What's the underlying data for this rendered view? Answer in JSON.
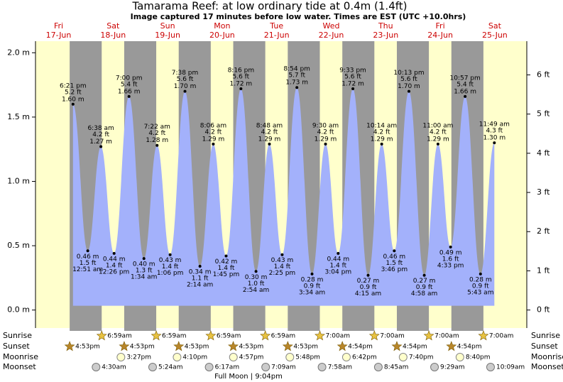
{
  "chart_data": {
    "type": "tide",
    "title": "Tamarama Reef: at low  ordinary tide at 0.4m (1.4ft)",
    "subtitle": "Image captured 17 minutes before low water. Times are EST (UTC +10.0hrs)",
    "ylim": [
      -0.14,
      2.09
    ],
    "yticks": [
      {
        "value": 0,
        "label": "0.0 m"
      },
      {
        "value": 0.5,
        "label": "0.5 m"
      },
      {
        "value": 1,
        "label": "1.0 m"
      },
      {
        "value": 1.5,
        "label": "1.5 m"
      },
      {
        "value": 2,
        "label": "2.0 m"
      }
    ],
    "y2lim": [
      -0.46,
      6.86
    ],
    "y2ticks": [
      {
        "value": 0,
        "label": "0 ft"
      },
      {
        "value": 1,
        "label": "1 ft"
      },
      {
        "value": 2,
        "label": "2 ft"
      },
      {
        "value": 3,
        "label": "3 ft"
      },
      {
        "value": 4,
        "label": "4 ft"
      },
      {
        "value": 5,
        "label": "5 ft"
      },
      {
        "value": 6,
        "label": "6 ft"
      }
    ],
    "colors": {
      "day": "#ffffcc",
      "night": "#999999",
      "water": "#a3b1fb",
      "date": "#cc0000"
    },
    "row_labels": {
      "sunrise": "Sunrise",
      "sunset": "Sunset",
      "moonrise": "Moonrise",
      "moonset": "Moonset"
    },
    "days": [
      {
        "weekday": "Fri",
        "date": "17-Jun",
        "sunset": "4:53pm",
        "tides": [
          {
            "time": "6:21 pm",
            "ft": "5.2 ft",
            "m": 1.6,
            "m_label": "1.60 m"
          }
        ]
      },
      {
        "weekday": "Sat",
        "date": "18-Jun",
        "sunrise": "6:59am",
        "sunset": "4:53pm",
        "moonrise": "3:27pm",
        "moonset": "4:30am",
        "tides": [
          {
            "time": "12:51 am",
            "ft": "1.5 ft",
            "m": 0.46,
            "m_label": "0.46 m"
          },
          {
            "time": "6:38 am",
            "ft": "4.2 ft",
            "m": 1.27,
            "m_label": "1.27 m"
          },
          {
            "time": "12:26 pm",
            "ft": "1.4 ft",
            "m": 0.44,
            "m_label": "0.44 m"
          },
          {
            "time": "7:00 pm",
            "ft": "5.4 ft",
            "m": 1.66,
            "m_label": "1.66 m"
          }
        ]
      },
      {
        "weekday": "Sun",
        "date": "19-Jun",
        "sunrise": "6:59am",
        "sunset": "4:53pm",
        "moonrise": "4:10pm",
        "moonset": "5:24am",
        "tides": [
          {
            "time": "1:34 am",
            "ft": "1.3 ft",
            "m": 0.4,
            "m_label": "0.40 m"
          },
          {
            "time": "7:22 am",
            "ft": "4.2 ft",
            "m": 1.28,
            "m_label": "1.28 m"
          },
          {
            "time": "1:06 pm",
            "ft": "1.4 ft",
            "m": 0.43,
            "m_label": "0.43 m"
          },
          {
            "time": "7:38 pm",
            "ft": "5.6 ft",
            "m": 1.7,
            "m_label": "1.70 m"
          }
        ]
      },
      {
        "weekday": "Mon",
        "date": "20-Jun",
        "sunrise": "6:59am",
        "sunset": "4:53pm",
        "moonrise": "4:57pm",
        "moonset": "6:17am",
        "tides": [
          {
            "time": "2:14 am",
            "ft": "1.1 ft",
            "m": 0.34,
            "m_label": "0.34 m"
          },
          {
            "time": "8:06 am",
            "ft": "4.2 ft",
            "m": 1.29,
            "m_label": "1.29 m"
          },
          {
            "time": "1:45 pm",
            "ft": "1.4 ft",
            "m": 0.42,
            "m_label": "0.42 m"
          },
          {
            "time": "8:16 pm",
            "ft": "5.6 ft",
            "m": 1.72,
            "m_label": "1.72 m"
          }
        ]
      },
      {
        "weekday": "Tue",
        "date": "21-Jun",
        "sunrise": "6:59am",
        "sunset": "4:53pm",
        "moonrise": "5:48pm",
        "moonset": "7:09am",
        "tides": [
          {
            "time": "2:54 am",
            "ft": "1.0 ft",
            "m": 0.3,
            "m_label": "0.30 m"
          },
          {
            "time": "8:48 am",
            "ft": "4.2 ft",
            "m": 1.29,
            "m_label": "1.29 m"
          },
          {
            "time": "2:25 pm",
            "ft": "1.4 ft",
            "m": 0.43,
            "m_label": "0.43 m"
          },
          {
            "time": "8:54 pm",
            "ft": "5.7 ft",
            "m": 1.73,
            "m_label": "1.73 m"
          }
        ]
      },
      {
        "weekday": "Wed",
        "date": "22-Jun",
        "sunrise": "7:00am",
        "sunset": "4:54pm",
        "moonrise": "6:42pm",
        "moonset": "7:58am",
        "tides": [
          {
            "time": "3:34 am",
            "ft": "0.9 ft",
            "m": 0.28,
            "m_label": "0.28 m"
          },
          {
            "time": "9:30 am",
            "ft": "4.2 ft",
            "m": 1.29,
            "m_label": "1.29 m"
          },
          {
            "time": "3:04 pm",
            "ft": "1.4 ft",
            "m": 0.44,
            "m_label": "0.44 m"
          },
          {
            "time": "9:33 pm",
            "ft": "5.6 ft",
            "m": 1.72,
            "m_label": "1.72 m"
          }
        ]
      },
      {
        "weekday": "Thu",
        "date": "23-Jun",
        "sunrise": "7:00am",
        "sunset": "4:54pm",
        "moonrise": "7:40pm",
        "moonset": "8:45am",
        "tides": [
          {
            "time": "4:15 am",
            "ft": "0.9 ft",
            "m": 0.27,
            "m_label": "0.27 m"
          },
          {
            "time": "10:14 am",
            "ft": "4.2 ft",
            "m": 1.29,
            "m_label": "1.29 m"
          },
          {
            "time": "3:46 pm",
            "ft": "1.5 ft",
            "m": 0.46,
            "m_label": "0.46 m"
          },
          {
            "time": "10:13 pm",
            "ft": "5.6 ft",
            "m": 1.7,
            "m_label": "1.70 m"
          }
        ]
      },
      {
        "weekday": "Fri",
        "date": "24-Jun",
        "sunrise": "7:00am",
        "sunset": "4:54pm",
        "moonrise": "8:40pm",
        "moonset": "9:29am",
        "tides": [
          {
            "time": "4:58 am",
            "ft": "0.9 ft",
            "m": 0.27,
            "m_label": "0.27 m"
          },
          {
            "time": "11:00 am",
            "ft": "4.2 ft",
            "m": 1.29,
            "m_label": "1.29 m"
          },
          {
            "time": "4:33 pm",
            "ft": "1.6 ft",
            "m": 0.49,
            "m_label": "0.49 m"
          },
          {
            "time": "10:57 pm",
            "ft": "5.4 ft",
            "m": 1.66,
            "m_label": "1.66 m"
          }
        ]
      },
      {
        "weekday": "Sat",
        "date": "25-Jun",
        "sunrise": "7:00am",
        "moonset": "10:09am",
        "tides": [
          {
            "time": "5:43 am",
            "ft": "0.9 ft",
            "m": 0.28,
            "m_label": "0.28 m"
          },
          {
            "time": "11:49 am",
            "ft": "4.3 ft",
            "m": 1.3,
            "m_label": "1.30 m"
          }
        ]
      }
    ],
    "footer": "Full Moon | 9:04pm"
  }
}
